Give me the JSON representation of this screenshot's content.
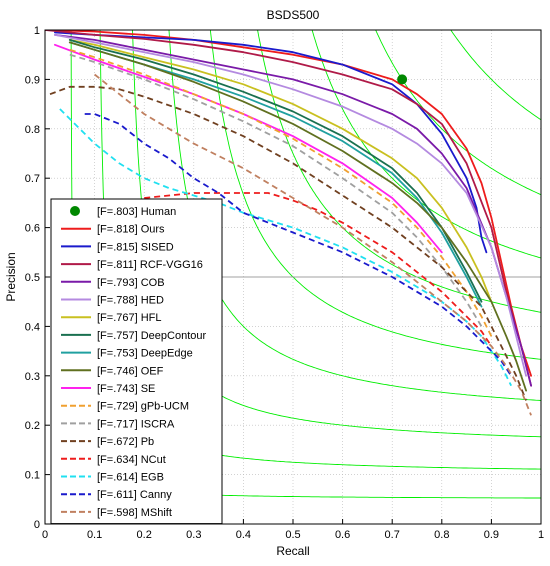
{
  "chart_data": {
    "type": "line",
    "title": "BSDS500",
    "xlabel": "Recall",
    "ylabel": "Precision",
    "xlim": [
      0,
      1
    ],
    "ylim": [
      0,
      1
    ],
    "x_ticks": [
      "0",
      "0.1",
      "0.2",
      "0.3",
      "0.4",
      "0.5",
      "0.6",
      "0.7",
      "0.8",
      "0.9",
      "1"
    ],
    "y_ticks": [
      "0",
      "0.1",
      "0.2",
      "0.3",
      "0.4",
      "0.5",
      "0.6",
      "0.7",
      "0.8",
      "0.9",
      "1"
    ],
    "grid": true,
    "legend_placement": "lower-left",
    "reference_line": {
      "y": 0.5,
      "color": "#a0a0a0"
    },
    "iso_f_lines": {
      "color": "#00ee00",
      "f_values": [
        0.1,
        0.2,
        0.3,
        0.4,
        0.5,
        0.6,
        0.7,
        0.8,
        0.9
      ]
    },
    "human_point": {
      "label": "[F=.803] Human",
      "x": 0.72,
      "y": 0.9,
      "color": "#008800"
    },
    "series": [
      {
        "name": "[F=.818] Ours",
        "color": "#ee1c1c",
        "dash": "solid",
        "x": [
          0,
          0.1,
          0.2,
          0.3,
          0.4,
          0.5,
          0.6,
          0.7,
          0.75,
          0.8,
          0.85,
          0.88,
          0.9,
          0.92,
          0.94,
          0.96,
          0.98
        ],
        "y": [
          1.0,
          0.997,
          0.99,
          0.98,
          0.965,
          0.95,
          0.93,
          0.9,
          0.87,
          0.83,
          0.76,
          0.69,
          0.62,
          0.53,
          0.44,
          0.36,
          0.3
        ]
      },
      {
        "name": "[F=.815] SISED",
        "color": "#1a1acc",
        "dash": "solid",
        "x": [
          0.02,
          0.1,
          0.2,
          0.3,
          0.4,
          0.5,
          0.6,
          0.7,
          0.75,
          0.8,
          0.85,
          0.87,
          0.88,
          0.89
        ],
        "y": [
          0.995,
          0.99,
          0.985,
          0.98,
          0.97,
          0.955,
          0.93,
          0.89,
          0.85,
          0.79,
          0.7,
          0.64,
          0.58,
          0.55
        ]
      },
      {
        "name": "[F=.811] RCF-VGG16",
        "color": "#b01a48",
        "dash": "solid",
        "x": [
          0,
          0.1,
          0.2,
          0.3,
          0.4,
          0.5,
          0.6,
          0.7,
          0.75,
          0.8,
          0.85,
          0.9,
          0.93,
          0.96,
          0.98
        ],
        "y": [
          1.0,
          0.99,
          0.982,
          0.97,
          0.955,
          0.935,
          0.91,
          0.88,
          0.85,
          0.81,
          0.73,
          0.6,
          0.47,
          0.36,
          0.28
        ]
      },
      {
        "name": "[F=.793] COB",
        "color": "#7a1aa8",
        "dash": "solid",
        "x": [
          0.02,
          0.1,
          0.2,
          0.3,
          0.4,
          0.5,
          0.6,
          0.7,
          0.75,
          0.8,
          0.85,
          0.9,
          0.93,
          0.96,
          0.98
        ],
        "y": [
          0.99,
          0.98,
          0.96,
          0.94,
          0.92,
          0.9,
          0.87,
          0.83,
          0.8,
          0.75,
          0.68,
          0.56,
          0.46,
          0.36,
          0.28
        ]
      },
      {
        "name": "[F=.788] HED",
        "color": "#b48ae0",
        "dash": "solid",
        "x": [
          0.02,
          0.1,
          0.2,
          0.3,
          0.4,
          0.5,
          0.6,
          0.7,
          0.75,
          0.8,
          0.85,
          0.9,
          0.93,
          0.95,
          0.97
        ],
        "y": [
          0.99,
          0.975,
          0.955,
          0.935,
          0.91,
          0.88,
          0.845,
          0.8,
          0.77,
          0.73,
          0.67,
          0.56,
          0.46,
          0.38,
          0.3
        ]
      },
      {
        "name": "[F=.767] HFL",
        "color": "#c9c020",
        "dash": "solid",
        "x": [
          0.05,
          0.1,
          0.2,
          0.3,
          0.4,
          0.5,
          0.6,
          0.7,
          0.75,
          0.8,
          0.85,
          0.88,
          0.9
        ],
        "y": [
          0.98,
          0.97,
          0.945,
          0.92,
          0.89,
          0.85,
          0.8,
          0.74,
          0.7,
          0.64,
          0.56,
          0.5,
          0.45
        ]
      },
      {
        "name": "[F=.757] DeepContour",
        "color": "#1a7050",
        "dash": "solid",
        "x": [
          0.05,
          0.1,
          0.2,
          0.3,
          0.4,
          0.5,
          0.6,
          0.7,
          0.75,
          0.8,
          0.85,
          0.88
        ],
        "y": [
          0.98,
          0.965,
          0.94,
          0.91,
          0.875,
          0.835,
          0.785,
          0.72,
          0.67,
          0.6,
          0.51,
          0.45
        ]
      },
      {
        "name": "[F=.753] DeepEdge",
        "color": "#20a0a0",
        "dash": "solid",
        "x": [
          0.05,
          0.1,
          0.2,
          0.3,
          0.4,
          0.5,
          0.6,
          0.7,
          0.75,
          0.8,
          0.85,
          0.88
        ],
        "y": [
          0.975,
          0.96,
          0.93,
          0.9,
          0.865,
          0.825,
          0.775,
          0.71,
          0.66,
          0.59,
          0.5,
          0.44
        ]
      },
      {
        "name": "[F=.746] OEF",
        "color": "#607020",
        "dash": "solid",
        "x": [
          0.05,
          0.1,
          0.2,
          0.3,
          0.4,
          0.5,
          0.6,
          0.7,
          0.75,
          0.8,
          0.85,
          0.9,
          0.93,
          0.95,
          0.97
        ],
        "y": [
          0.975,
          0.96,
          0.93,
          0.895,
          0.855,
          0.81,
          0.755,
          0.69,
          0.65,
          0.6,
          0.53,
          0.45,
          0.38,
          0.33,
          0.27
        ]
      },
      {
        "name": "[F=.743] SE",
        "color": "#ff22ee",
        "dash": "solid",
        "x": [
          0.02,
          0.1,
          0.2,
          0.3,
          0.4,
          0.5,
          0.6,
          0.7,
          0.75,
          0.8
        ],
        "y": [
          0.97,
          0.94,
          0.905,
          0.87,
          0.83,
          0.785,
          0.73,
          0.66,
          0.61,
          0.55
        ]
      },
      {
        "name": "[F=.729] gPb-UCM",
        "color": "#f0a030",
        "dash": "dash",
        "x": [
          0.05,
          0.1,
          0.2,
          0.3,
          0.4,
          0.5,
          0.6,
          0.7,
          0.75,
          0.8,
          0.85,
          0.88,
          0.9
        ],
        "y": [
          0.96,
          0.945,
          0.91,
          0.87,
          0.83,
          0.78,
          0.72,
          0.65,
          0.6,
          0.54,
          0.47,
          0.42,
          0.38
        ]
      },
      {
        "name": "[F=.717] ISCRA",
        "color": "#a0a0a0",
        "dash": "dash",
        "x": [
          0.05,
          0.1,
          0.2,
          0.3,
          0.4,
          0.5,
          0.6,
          0.7,
          0.75,
          0.8,
          0.85,
          0.88
        ],
        "y": [
          0.95,
          0.935,
          0.9,
          0.86,
          0.815,
          0.765,
          0.7,
          0.63,
          0.58,
          0.52,
          0.45,
          0.4
        ]
      },
      {
        "name": "[F=.672] Pb",
        "color": "#704020",
        "dash": "dash",
        "x": [
          0.01,
          0.05,
          0.1,
          0.15,
          0.2,
          0.3,
          0.4,
          0.5,
          0.6,
          0.7,
          0.75,
          0.8,
          0.85,
          0.88,
          0.9,
          0.93,
          0.95,
          0.97
        ],
        "y": [
          0.87,
          0.885,
          0.885,
          0.88,
          0.865,
          0.83,
          0.785,
          0.73,
          0.665,
          0.6,
          0.56,
          0.52,
          0.47,
          0.44,
          0.4,
          0.34,
          0.3,
          0.25
        ]
      },
      {
        "name": "[F=.634] NCut",
        "color": "#ee1c1c",
        "dash": "dash",
        "x": [
          0.2,
          0.25,
          0.3,
          0.35,
          0.4,
          0.45,
          0.5,
          0.55,
          0.6,
          0.65,
          0.7,
          0.75,
          0.8,
          0.85,
          0.88,
          0.9
        ],
        "y": [
          0.66,
          0.665,
          0.67,
          0.67,
          0.67,
          0.67,
          0.655,
          0.635,
          0.61,
          0.58,
          0.55,
          0.51,
          0.47,
          0.42,
          0.39,
          0.36
        ]
      },
      {
        "name": "[F=.614] EGB",
        "color": "#20e0f0",
        "dash": "dash",
        "x": [
          0.03,
          0.05,
          0.1,
          0.15,
          0.2,
          0.25,
          0.3,
          0.35,
          0.4,
          0.5,
          0.6,
          0.7,
          0.75,
          0.8,
          0.85,
          0.88,
          0.9,
          0.92,
          0.94
        ],
        "y": [
          0.84,
          0.82,
          0.77,
          0.73,
          0.7,
          0.68,
          0.665,
          0.65,
          0.63,
          0.6,
          0.56,
          0.51,
          0.48,
          0.45,
          0.41,
          0.38,
          0.35,
          0.32,
          0.28
        ]
      },
      {
        "name": "[F=.611] Canny",
        "color": "#1a1acc",
        "dash": "dash",
        "x": [
          0.08,
          0.1,
          0.15,
          0.2,
          0.25,
          0.3,
          0.35,
          0.4,
          0.5,
          0.6,
          0.7,
          0.75,
          0.8,
          0.85,
          0.88,
          0.9,
          0.92,
          0.94
        ],
        "y": [
          0.83,
          0.83,
          0.81,
          0.77,
          0.74,
          0.7,
          0.67,
          0.63,
          0.59,
          0.55,
          0.5,
          0.47,
          0.44,
          0.4,
          0.37,
          0.35,
          0.33,
          0.3
        ]
      },
      {
        "name": "[F=.598] MShift",
        "color": "#c08060",
        "dash": "dash",
        "x": [
          0.1,
          0.15,
          0.2,
          0.3,
          0.4,
          0.5,
          0.6,
          0.7,
          0.75,
          0.8,
          0.85,
          0.9,
          0.93,
          0.96,
          0.98
        ],
        "y": [
          0.91,
          0.87,
          0.83,
          0.77,
          0.72,
          0.66,
          0.6,
          0.53,
          0.49,
          0.45,
          0.41,
          0.36,
          0.32,
          0.27,
          0.22
        ]
      }
    ]
  }
}
